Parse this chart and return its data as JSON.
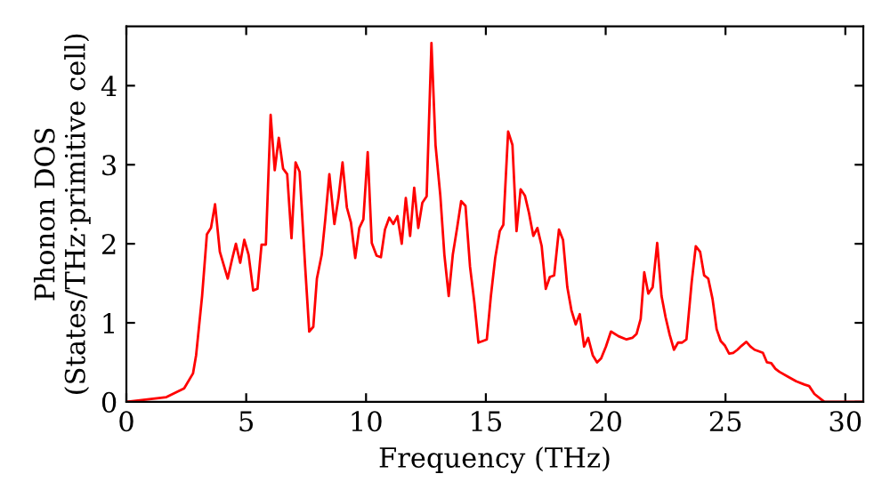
{
  "chart_data": {
    "type": "line",
    "xlabel": "Frequency (THz)",
    "ylabel": "Phonon DOS\n(States/THz·primitive cell)",
    "xlim": [
      0,
      30.75
    ],
    "ylim": [
      0,
      4.75
    ],
    "xticks": [
      0,
      5,
      10,
      15,
      20,
      25,
      30
    ],
    "yticks": [
      0,
      1,
      2,
      3,
      4
    ],
    "grid": false,
    "legend": false,
    "marker": "none",
    "line_style": "solid",
    "series": [
      {
        "color": "#ff0000",
        "x": [
          0,
          1.67,
          2.41,
          2.78,
          2.91,
          3.16,
          3.36,
          3.53,
          3.7,
          3.9,
          4.23,
          4.4,
          4.57,
          4.75,
          4.92,
          5.1,
          5.29,
          5.47,
          5.64,
          5.82,
          6.02,
          6.19,
          6.36,
          6.54,
          6.71,
          6.89,
          7.06,
          7.23,
          7.46,
          7.63,
          7.8,
          7.95,
          8.15,
          8.3,
          8.47,
          8.68,
          8.85,
          9.02,
          9.2,
          9.37,
          9.55,
          9.72,
          9.89,
          10.07,
          10.24,
          10.44,
          10.62,
          10.79,
          10.97,
          11.14,
          11.31,
          11.49,
          11.66,
          11.84,
          12.01,
          12.18,
          12.35,
          12.53,
          12.73,
          12.9,
          13.1,
          13.27,
          13.45,
          13.62,
          13.8,
          13.97,
          14.15,
          14.34,
          14.52,
          14.69,
          14.87,
          15.04,
          15.21,
          15.39,
          15.58,
          15.73,
          15.93,
          16.11,
          16.28,
          16.45,
          16.63,
          16.8,
          16.98,
          17.15,
          17.33,
          17.5,
          17.67,
          17.85,
          18.05,
          18.22,
          18.4,
          18.57,
          18.75,
          18.92,
          19.1,
          19.27,
          19.46,
          19.64,
          19.81,
          20.01,
          20.22,
          20.54,
          20.87,
          21.11,
          21.29,
          21.46,
          21.61,
          21.78,
          21.96,
          22.15,
          22.33,
          22.5,
          22.67,
          22.85,
          23.02,
          23.19,
          23.37,
          23.59,
          23.76,
          23.94,
          24.11,
          24.28,
          24.46,
          24.63,
          24.8,
          24.98,
          25.15,
          25.32,
          25.5,
          25.67,
          25.87,
          26.04,
          26.21,
          26.39,
          26.56,
          26.73,
          26.91,
          27.08,
          27.25,
          27.6,
          27.95,
          28.29,
          28.49,
          28.71,
          28.96,
          29.13,
          30.69
        ],
        "values": [
          0,
          0.06,
          0.17,
          0.36,
          0.59,
          1.34,
          2.12,
          2.2,
          2.5,
          1.9,
          1.56,
          1.79,
          2.0,
          1.76,
          2.05,
          1.86,
          1.41,
          1.43,
          1.99,
          1.99,
          3.63,
          2.93,
          3.34,
          2.95,
          2.88,
          2.07,
          3.03,
          2.91,
          1.71,
          0.89,
          0.95,
          1.56,
          1.86,
          2.31,
          2.88,
          2.25,
          2.58,
          3.03,
          2.46,
          2.27,
          1.82,
          2.2,
          2.31,
          3.16,
          2.01,
          1.85,
          1.83,
          2.18,
          2.33,
          2.25,
          2.35,
          2.0,
          2.58,
          2.1,
          2.71,
          2.2,
          2.52,
          2.6,
          4.54,
          3.25,
          2.61,
          1.86,
          1.34,
          1.86,
          2.2,
          2.54,
          2.48,
          1.71,
          1.26,
          0.75,
          0.77,
          0.79,
          1.34,
          1.82,
          2.16,
          2.24,
          3.42,
          3.25,
          2.16,
          2.69,
          2.61,
          2.39,
          2.1,
          2.2,
          1.97,
          1.43,
          1.58,
          1.6,
          2.18,
          2.05,
          1.45,
          1.16,
          0.98,
          1.11,
          0.7,
          0.81,
          0.59,
          0.5,
          0.55,
          0.7,
          0.89,
          0.83,
          0.79,
          0.81,
          0.86,
          1.05,
          1.64,
          1.37,
          1.45,
          2.01,
          1.34,
          1.07,
          0.85,
          0.66,
          0.75,
          0.75,
          0.79,
          1.52,
          1.97,
          1.9,
          1.6,
          1.56,
          1.3,
          0.92,
          0.77,
          0.71,
          0.61,
          0.62,
          0.66,
          0.71,
          0.76,
          0.7,
          0.66,
          0.64,
          0.62,
          0.5,
          0.49,
          0.42,
          0.38,
          0.32,
          0.26,
          0.22,
          0.2,
          0.1,
          0.04,
          0,
          0
        ]
      }
    ]
  }
}
